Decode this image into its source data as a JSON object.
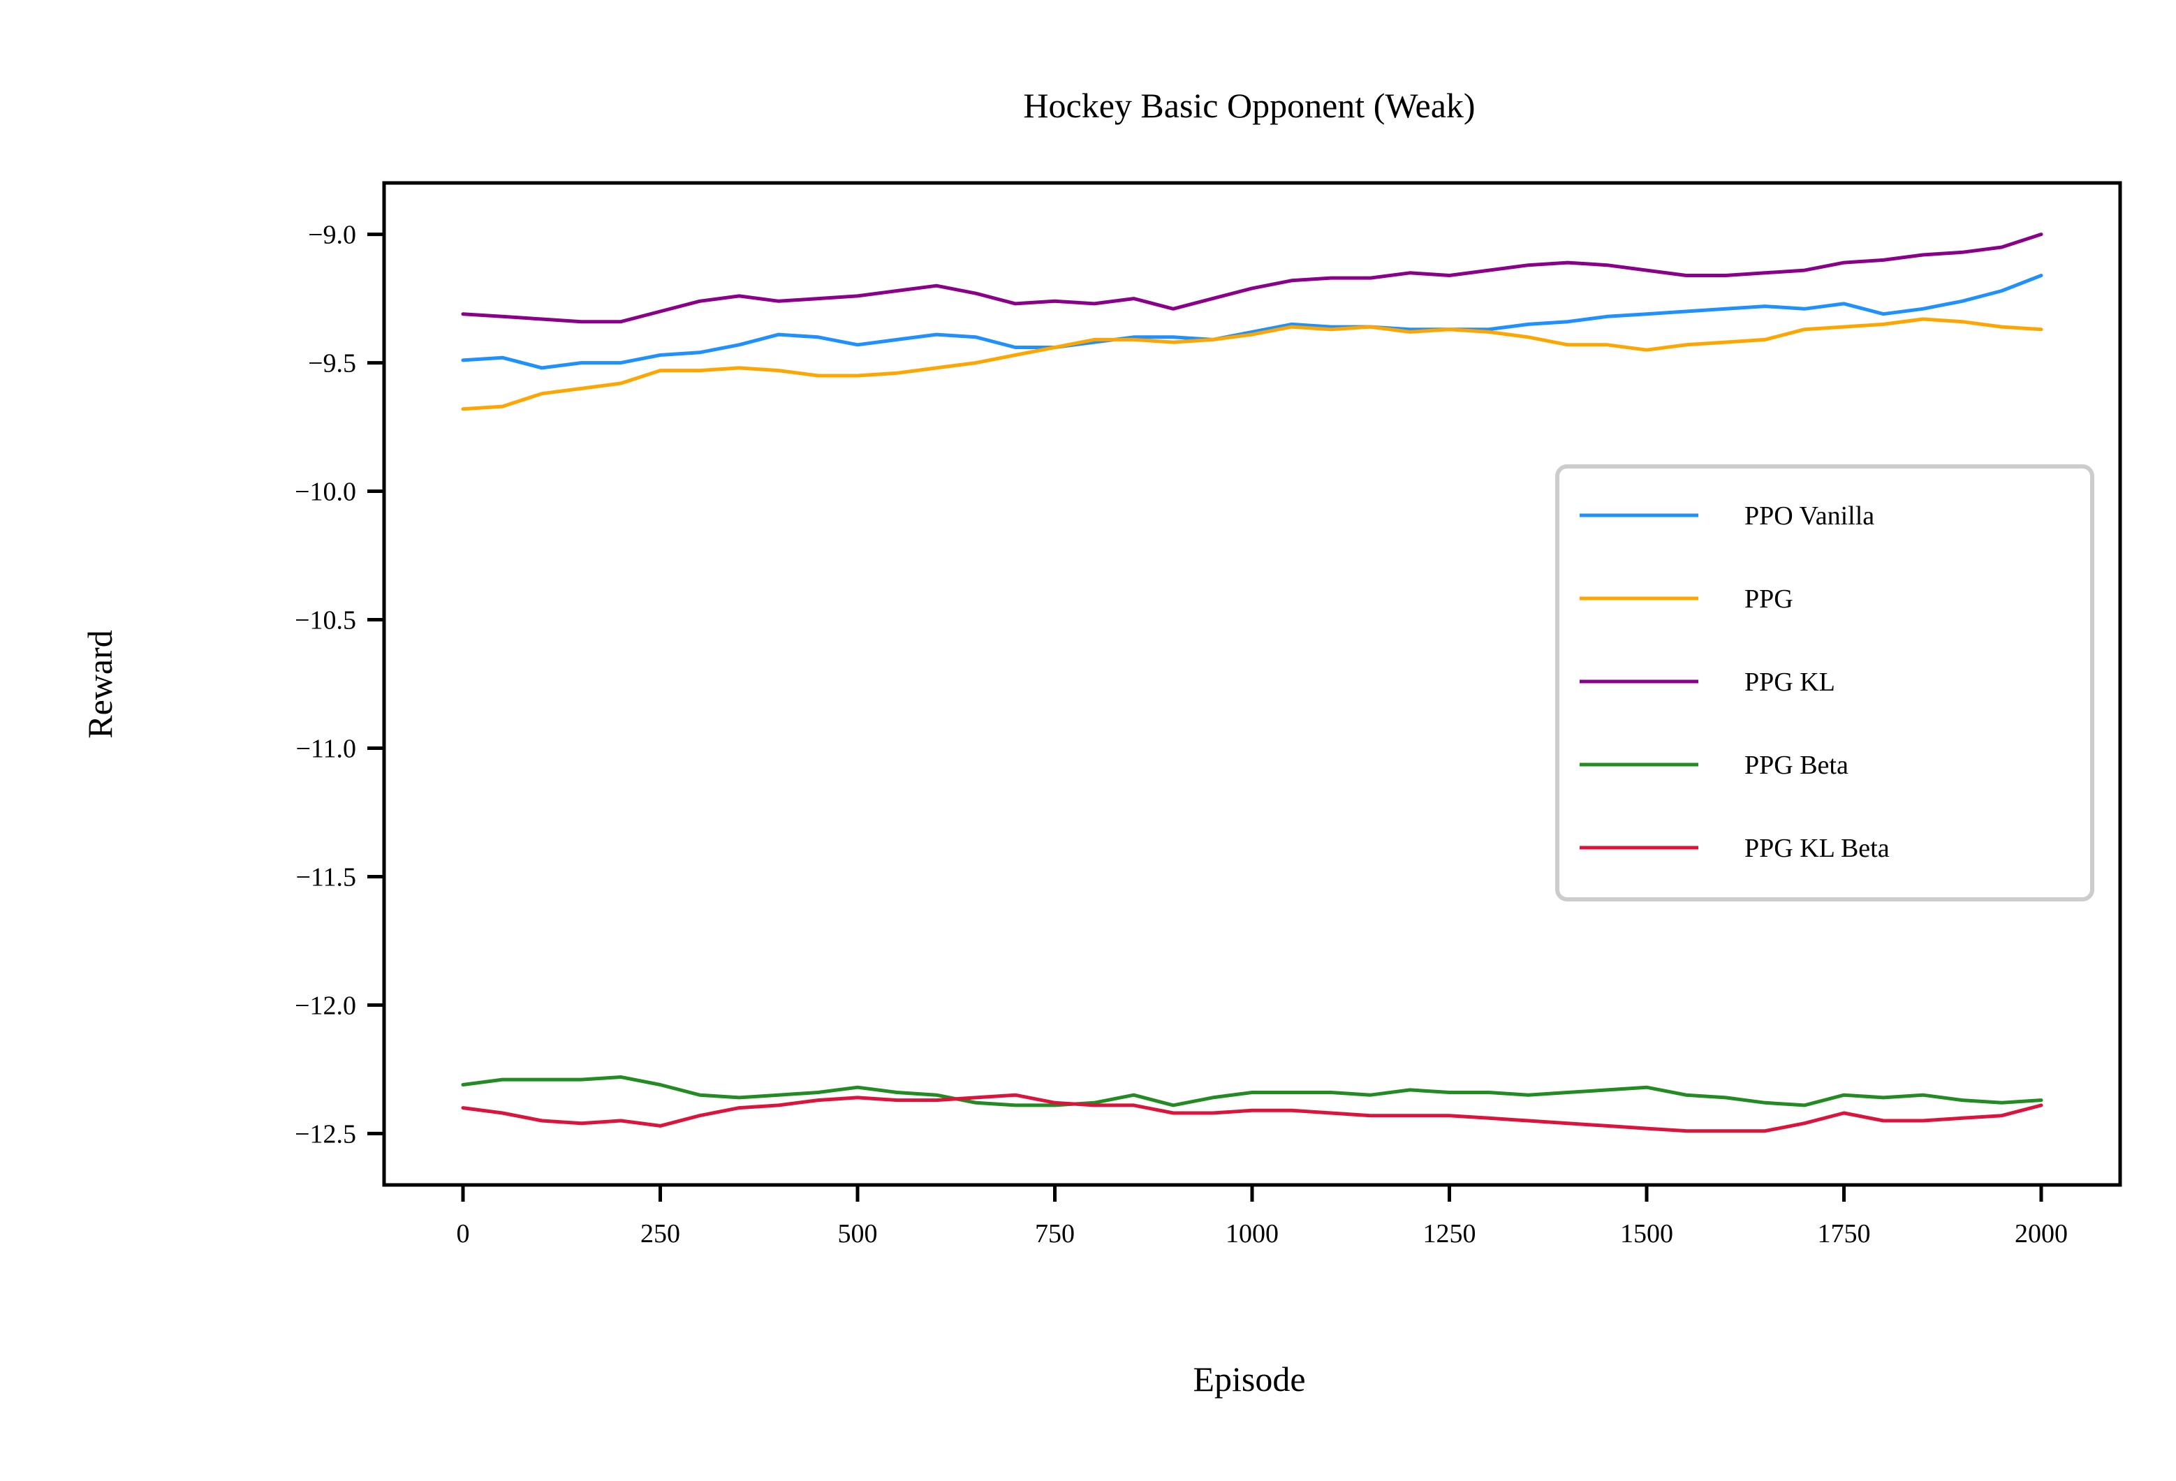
{
  "chart_data": {
    "type": "line",
    "title": "Hockey Basic Opponent (Weak)",
    "xlabel": "Episode",
    "ylabel": "Reward",
    "xlim": [
      -100,
      2100
    ],
    "ylim": [
      -12.7,
      -8.8
    ],
    "xticks": [
      0,
      250,
      500,
      750,
      1000,
      1250,
      1500,
      1750,
      2000
    ],
    "xtick_labels": [
      "0",
      "250",
      "500",
      "750",
      "1000",
      "1250",
      "1500",
      "1750",
      "2000"
    ],
    "yticks": [
      -9.0,
      -9.5,
      -10.0,
      -10.5,
      -11.0,
      -11.5,
      -12.0,
      -12.5
    ],
    "ytick_labels": [
      "−9.0",
      "−9.5",
      "−10.0",
      "−10.5",
      "−11.0",
      "−11.5",
      "−12.0",
      "−12.5"
    ],
    "grid": false,
    "legend_position": "center-right",
    "x": [
      0,
      50,
      100,
      150,
      200,
      250,
      300,
      350,
      400,
      450,
      500,
      550,
      600,
      650,
      700,
      750,
      800,
      850,
      900,
      950,
      1000,
      1050,
      1100,
      1150,
      1200,
      1250,
      1300,
      1350,
      1400,
      1450,
      1500,
      1550,
      1600,
      1650,
      1700,
      1750,
      1800,
      1850,
      1900,
      1950,
      2000
    ],
    "series": [
      {
        "name": "PPO Vanilla",
        "color": "#1e90ff",
        "values": [
          -9.49,
          -9.48,
          -9.52,
          -9.5,
          -9.5,
          -9.47,
          -9.46,
          -9.43,
          -9.39,
          -9.4,
          -9.43,
          -9.41,
          -9.39,
          -9.4,
          -9.44,
          -9.44,
          -9.42,
          -9.4,
          -9.4,
          -9.41,
          -9.38,
          -9.35,
          -9.36,
          -9.36,
          -9.37,
          -9.37,
          -9.37,
          -9.35,
          -9.34,
          -9.32,
          -9.31,
          -9.3,
          -9.29,
          -9.28,
          -9.29,
          -9.27,
          -9.31,
          -9.29,
          -9.26,
          -9.22,
          -9.16
        ]
      },
      {
        "name": "PPG",
        "color": "#ffa500",
        "values": [
          -9.68,
          -9.67,
          -9.62,
          -9.6,
          -9.58,
          -9.53,
          -9.53,
          -9.52,
          -9.53,
          -9.55,
          -9.55,
          -9.54,
          -9.52,
          -9.5,
          -9.47,
          -9.44,
          -9.41,
          -9.41,
          -9.42,
          -9.41,
          -9.39,
          -9.36,
          -9.37,
          -9.36,
          -9.38,
          -9.37,
          -9.38,
          -9.4,
          -9.43,
          -9.43,
          -9.45,
          -9.43,
          -9.42,
          -9.41,
          -9.37,
          -9.36,
          -9.35,
          -9.33,
          -9.34,
          -9.36,
          -9.37
        ]
      },
      {
        "name": "PPG KL",
        "color": "#8b008b",
        "values": [
          -9.31,
          -9.32,
          -9.33,
          -9.34,
          -9.34,
          -9.3,
          -9.26,
          -9.24,
          -9.26,
          -9.25,
          -9.24,
          -9.22,
          -9.2,
          -9.23,
          -9.27,
          -9.26,
          -9.27,
          -9.25,
          -9.29,
          -9.25,
          -9.21,
          -9.18,
          -9.17,
          -9.17,
          -9.15,
          -9.16,
          -9.14,
          -9.12,
          -9.11,
          -9.12,
          -9.14,
          -9.16,
          -9.16,
          -9.15,
          -9.14,
          -9.11,
          -9.1,
          -9.08,
          -9.07,
          -9.05,
          -9.0
        ]
      },
      {
        "name": "PPG Beta",
        "color": "#228b22",
        "values": [
          -12.31,
          -12.29,
          -12.29,
          -12.29,
          -12.28,
          -12.31,
          -12.35,
          -12.36,
          -12.35,
          -12.34,
          -12.32,
          -12.34,
          -12.35,
          -12.38,
          -12.39,
          -12.39,
          -12.38,
          -12.35,
          -12.39,
          -12.36,
          -12.34,
          -12.34,
          -12.34,
          -12.35,
          -12.33,
          -12.34,
          -12.34,
          -12.35,
          -12.34,
          -12.33,
          -12.32,
          -12.35,
          -12.36,
          -12.38,
          -12.39,
          -12.35,
          -12.36,
          -12.35,
          -12.37,
          -12.38,
          -12.37
        ]
      },
      {
        "name": "PPG KL Beta",
        "color": "#dc143c",
        "values": [
          -12.4,
          -12.42,
          -12.45,
          -12.46,
          -12.45,
          -12.47,
          -12.43,
          -12.4,
          -12.39,
          -12.37,
          -12.36,
          -12.37,
          -12.37,
          -12.36,
          -12.35,
          -12.38,
          -12.39,
          -12.39,
          -12.42,
          -12.42,
          -12.41,
          -12.41,
          -12.42,
          -12.43,
          -12.43,
          -12.43,
          -12.44,
          -12.45,
          -12.46,
          -12.47,
          -12.48,
          -12.49,
          -12.49,
          -12.49,
          -12.46,
          -12.42,
          -12.45,
          -12.45,
          -12.44,
          -12.43,
          -12.39
        ]
      }
    ]
  }
}
